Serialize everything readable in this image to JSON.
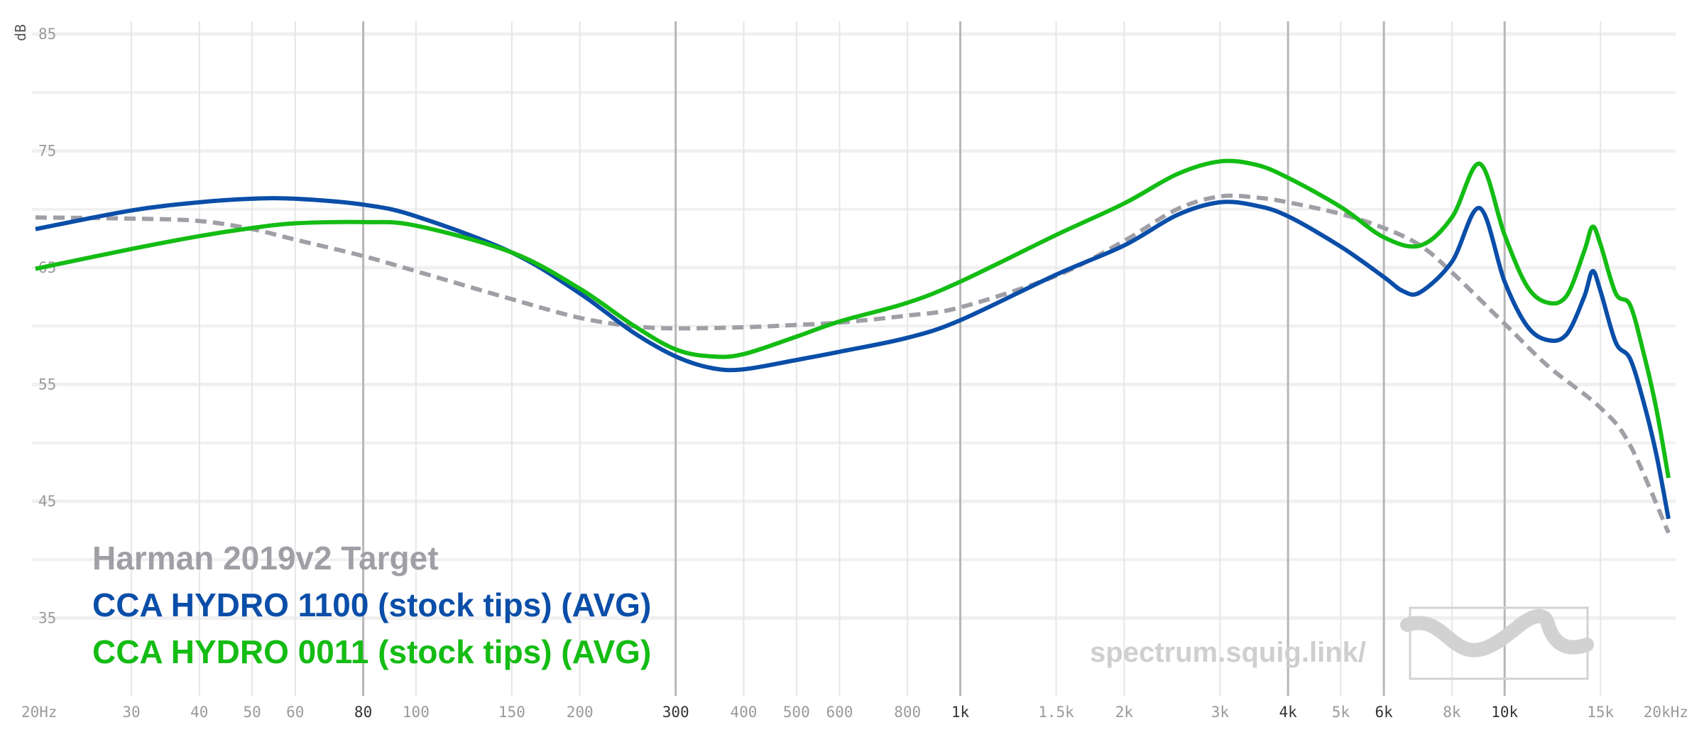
{
  "chart_data": {
    "type": "line",
    "xscale": "log",
    "xlim": [
      20,
      20000
    ],
    "ylim": [
      30,
      85
    ],
    "ylabel": "dB",
    "grid": true,
    "legend_placement": "bottom-left",
    "x_ticks": [
      {
        "value": 20,
        "label": "20Hz"
      },
      {
        "value": 30,
        "label": "30"
      },
      {
        "value": 40,
        "label": "40"
      },
      {
        "value": 50,
        "label": "50"
      },
      {
        "value": 60,
        "label": "60"
      },
      {
        "value": 80,
        "label": "80",
        "major": true
      },
      {
        "value": 100,
        "label": "100"
      },
      {
        "value": 150,
        "label": "150"
      },
      {
        "value": 200,
        "label": "200"
      },
      {
        "value": 300,
        "label": "300",
        "major": true
      },
      {
        "value": 400,
        "label": "400"
      },
      {
        "value": 500,
        "label": "500"
      },
      {
        "value": 600,
        "label": "600"
      },
      {
        "value": 800,
        "label": "800"
      },
      {
        "value": 1000,
        "label": "1k",
        "major": true
      },
      {
        "value": 1500,
        "label": "1.5k"
      },
      {
        "value": 2000,
        "label": "2k"
      },
      {
        "value": 3000,
        "label": "3k"
      },
      {
        "value": 4000,
        "label": "4k",
        "major": true
      },
      {
        "value": 5000,
        "label": "5k"
      },
      {
        "value": 6000,
        "label": "6k",
        "major": true
      },
      {
        "value": 8000,
        "label": "8k"
      },
      {
        "value": 10000,
        "label": "10k",
        "major": true
      },
      {
        "value": 15000,
        "label": "15k"
      },
      {
        "value": 20000,
        "label": "20kHz"
      }
    ],
    "y_ticks": [
      85,
      75,
      65,
      55,
      45,
      35
    ],
    "series": [
      {
        "name": "Harman 2019v2 Target",
        "color": "#a09fa6",
        "dashed": true,
        "points": [
          [
            20,
            69.3
          ],
          [
            30,
            69.2
          ],
          [
            40,
            69
          ],
          [
            50,
            68.3
          ],
          [
            60,
            67.4
          ],
          [
            80,
            66
          ],
          [
            100,
            64.7
          ],
          [
            150,
            62.3
          ],
          [
            200,
            60.7
          ],
          [
            250,
            60.0
          ],
          [
            300,
            59.8
          ],
          [
            400,
            59.9
          ],
          [
            500,
            60.1
          ],
          [
            600,
            60.3
          ],
          [
            800,
            60.9
          ],
          [
            1000,
            61.6
          ],
          [
            1500,
            64.3
          ],
          [
            2000,
            67.3
          ],
          [
            2500,
            70.0
          ],
          [
            3000,
            71.1
          ],
          [
            3500,
            71.0
          ],
          [
            4000,
            70.6
          ],
          [
            5000,
            69.6
          ],
          [
            6000,
            68.4
          ],
          [
            7000,
            66.9
          ],
          [
            8000,
            64.6
          ],
          [
            10000,
            60.2
          ],
          [
            12000,
            56.6
          ],
          [
            15000,
            53.0
          ],
          [
            17000,
            49.8
          ],
          [
            20000,
            42.3
          ]
        ]
      },
      {
        "name": "CCA HYDRO 1100 (stock tips) (AVG)",
        "color": "#0a4ea8",
        "dashed": false,
        "points": [
          [
            20,
            68.3
          ],
          [
            30,
            69.9
          ],
          [
            40,
            70.6
          ],
          [
            50,
            70.9
          ],
          [
            60,
            70.9
          ],
          [
            80,
            70.4
          ],
          [
            100,
            69.4
          ],
          [
            150,
            66.3
          ],
          [
            200,
            62.8
          ],
          [
            250,
            59.5
          ],
          [
            300,
            57.4
          ],
          [
            350,
            56.4
          ],
          [
            400,
            56.3
          ],
          [
            500,
            57.1
          ],
          [
            600,
            57.8
          ],
          [
            800,
            59.0
          ],
          [
            1000,
            60.5
          ],
          [
            1500,
            64.4
          ],
          [
            2000,
            66.9
          ],
          [
            2500,
            69.5
          ],
          [
            3000,
            70.6
          ],
          [
            3500,
            70.3
          ],
          [
            4000,
            69.4
          ],
          [
            5000,
            66.8
          ],
          [
            6000,
            64.2
          ],
          [
            6500,
            63.0
          ],
          [
            7000,
            62.9
          ],
          [
            8000,
            65.5
          ],
          [
            9000,
            70.1
          ],
          [
            10000,
            63.8
          ],
          [
            11000,
            60.0
          ],
          [
            12000,
            58.8
          ],
          [
            13000,
            59.3
          ],
          [
            14000,
            62.5
          ],
          [
            14500,
            64.7
          ],
          [
            15000,
            63.0
          ],
          [
            16000,
            58.6
          ],
          [
            17000,
            57.2
          ],
          [
            18000,
            53.5
          ],
          [
            19000,
            49.0
          ],
          [
            20000,
            43.5
          ]
        ]
      },
      {
        "name": "CCA HYDRO 0011 (stock tips) (AVG)",
        "color": "#14bc14",
        "dashed": false,
        "points": [
          [
            20,
            64.9
          ],
          [
            30,
            66.6
          ],
          [
            40,
            67.7
          ],
          [
            50,
            68.4
          ],
          [
            60,
            68.8
          ],
          [
            80,
            68.9
          ],
          [
            100,
            68.6
          ],
          [
            150,
            66.3
          ],
          [
            200,
            63.2
          ],
          [
            250,
            60.1
          ],
          [
            300,
            58.0
          ],
          [
            350,
            57.4
          ],
          [
            400,
            57.6
          ],
          [
            500,
            59.1
          ],
          [
            600,
            60.4
          ],
          [
            800,
            62.0
          ],
          [
            1000,
            63.8
          ],
          [
            1500,
            67.8
          ],
          [
            2000,
            70.5
          ],
          [
            2500,
            73.0
          ],
          [
            3000,
            74.1
          ],
          [
            3500,
            73.8
          ],
          [
            4000,
            72.7
          ],
          [
            5000,
            70.2
          ],
          [
            6000,
            67.6
          ],
          [
            7000,
            66.9
          ],
          [
            8000,
            69.3
          ],
          [
            9000,
            73.9
          ],
          [
            10000,
            67.8
          ],
          [
            11000,
            63.4
          ],
          [
            12000,
            62.0
          ],
          [
            13000,
            62.6
          ],
          [
            14000,
            66.4
          ],
          [
            14500,
            68.5
          ],
          [
            15000,
            67.0
          ],
          [
            16000,
            62.8
          ],
          [
            17000,
            61.8
          ],
          [
            18000,
            57.7
          ],
          [
            19000,
            52.9
          ],
          [
            20000,
            47.0
          ]
        ]
      }
    ],
    "annotations": [
      "spectrum.squig.link/"
    ]
  }
}
